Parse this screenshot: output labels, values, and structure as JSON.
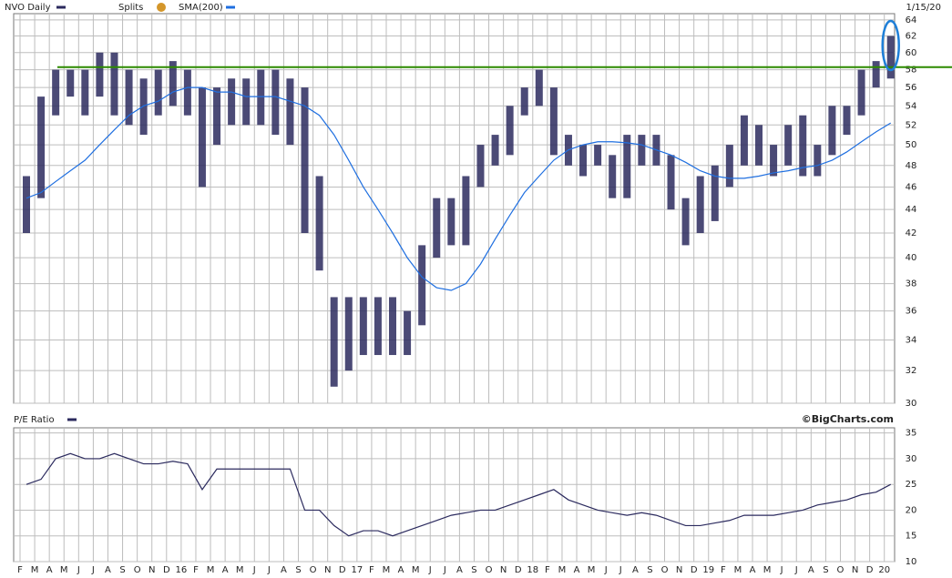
{
  "chart_data": [
    {
      "type": "hilo",
      "title": "NVO Daily",
      "splits_label": "Splits",
      "date_label": "1/15/20",
      "series": [
        {
          "name": "NVO Daily",
          "color": "#2b2a5e",
          "high": [
            47,
            55,
            58,
            58,
            58,
            60,
            60,
            58,
            57,
            58,
            59,
            58,
            56,
            56,
            57,
            57,
            58,
            58,
            57,
            56,
            47,
            37,
            37,
            37,
            37,
            37,
            36,
            41,
            45,
            45,
            47,
            50,
            51,
            54,
            56,
            58,
            56,
            51,
            50,
            50,
            49,
            51,
            51,
            51,
            49,
            45,
            47,
            48,
            50,
            53,
            52,
            50,
            52,
            53,
            50,
            54,
            54,
            58,
            59,
            62
          ],
          "low": [
            42,
            45,
            53,
            55,
            53,
            55,
            53,
            52,
            51,
            53,
            54,
            53,
            46,
            50,
            52,
            52,
            52,
            51,
            50,
            42,
            39,
            31,
            32,
            33,
            33,
            33,
            33,
            35,
            40,
            41,
            41,
            46,
            48,
            49,
            53,
            54,
            49,
            48,
            47,
            48,
            45,
            45,
            48,
            48,
            44,
            41,
            42,
            43,
            46,
            48,
            48,
            47,
            48,
            47,
            47,
            49,
            51,
            53,
            56,
            57
          ]
        },
        {
          "name": "SMA(200)",
          "color": "#1f6fe0",
          "values": [
            45,
            45.5,
            46.5,
            47.5,
            48.5,
            50,
            51.5,
            53,
            54,
            54.5,
            55.5,
            56,
            56,
            55.5,
            55.5,
            55,
            55,
            55,
            54.5,
            54,
            53,
            51,
            48.5,
            46,
            44,
            42,
            40,
            38.5,
            37.7,
            37.5,
            38,
            39.5,
            41.5,
            43.5,
            45.5,
            47,
            48.5,
            49.5,
            50,
            50.3,
            50.3,
            50.2,
            50,
            49.5,
            49,
            48.3,
            47.5,
            47,
            46.8,
            46.8,
            47,
            47.3,
            47.5,
            47.8,
            48,
            48.5,
            49.3,
            50.3,
            51.3,
            52.2
          ]
        }
      ],
      "reference_line": {
        "value": 58.3,
        "color": "#2d8a00"
      },
      "highlight_color": "#1e7fd8",
      "ylim": [
        30,
        64.8
      ],
      "yticks": [
        30,
        32,
        34,
        36,
        38,
        40,
        42,
        44,
        46,
        48,
        50,
        52,
        54,
        56,
        58,
        60,
        62,
        64
      ],
      "log_scale": true,
      "grid": true
    },
    {
      "type": "line",
      "title": "P/E Ratio",
      "credit": "©BigCharts.com",
      "categories": [
        "F",
        "M",
        "A",
        "M",
        "J",
        "J",
        "A",
        "S",
        "O",
        "N",
        "D",
        "16",
        "F",
        "M",
        "A",
        "M",
        "J",
        "J",
        "A",
        "S",
        "O",
        "N",
        "D",
        "17",
        "F",
        "M",
        "A",
        "M",
        "J",
        "J",
        "A",
        "S",
        "O",
        "N",
        "D",
        "18",
        "F",
        "M",
        "A",
        "M",
        "J",
        "J",
        "A",
        "S",
        "O",
        "N",
        "D",
        "19",
        "F",
        "M",
        "A",
        "M",
        "J",
        "J",
        "A",
        "S",
        "O",
        "N",
        "D",
        "20"
      ],
      "series": [
        {
          "name": "P/E Ratio",
          "color": "#2b2a5e",
          "values": [
            25,
            26,
            30,
            31,
            30,
            30,
            31,
            30,
            29,
            29,
            29.5,
            29,
            24,
            28,
            28,
            28,
            28,
            28,
            28,
            20,
            20,
            17,
            15,
            16,
            16,
            15,
            16,
            17,
            18,
            19,
            19.5,
            20,
            20,
            21,
            22,
            23,
            24,
            22,
            21,
            20,
            19.5,
            19,
            19.5,
            19,
            18,
            17,
            17,
            17.5,
            18,
            19,
            19,
            19,
            19.5,
            20,
            21,
            21.5,
            22,
            23,
            23.5,
            25
          ]
        }
      ],
      "ylim": [
        10,
        36
      ],
      "yticks": [
        10,
        15,
        20,
        25,
        30,
        35
      ],
      "grid": true
    }
  ]
}
